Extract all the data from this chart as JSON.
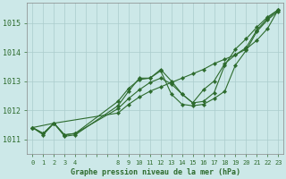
{
  "bg_color": "#cce8e8",
  "grid_color": "#aacccc",
  "line_color": "#2d6b2d",
  "marker_color": "#2d6b2d",
  "ylim": [
    1010.5,
    1015.7
  ],
  "yticks": [
    1011,
    1012,
    1013,
    1014,
    1015
  ],
  "xlabel": "Graphe pression niveau de la mer (hPa)",
  "lines": [
    {
      "x": [
        0,
        1,
        2,
        3,
        4,
        8,
        9,
        10,
        11,
        12,
        13,
        14,
        15,
        16,
        17,
        18,
        19,
        20,
        21,
        22,
        23
      ],
      "y": [
        1011.4,
        1011.2,
        1011.55,
        1011.15,
        1011.2,
        1012.05,
        1012.4,
        1012.7,
        1012.95,
        1013.1,
        1012.9,
        1012.55,
        1012.25,
        1012.7,
        1013.0,
        1013.6,
        1013.9,
        1014.15,
        1014.75,
        1015.15,
        1015.45
      ]
    },
    {
      "x": [
        0,
        1,
        2,
        3,
        4,
        8,
        9,
        10,
        11,
        12,
        13,
        14,
        15,
        16,
        17,
        18,
        19,
        20,
        21,
        22,
        23
      ],
      "y": [
        1011.4,
        1011.2,
        1011.55,
        1011.15,
        1011.2,
        1012.3,
        1012.75,
        1013.05,
        1013.1,
        1013.4,
        1013.0,
        1012.55,
        1012.25,
        1012.3,
        1012.6,
        1013.55,
        1014.1,
        1014.45,
        1014.85,
        1015.2,
        1015.45
      ]
    },
    {
      "x": [
        0,
        1,
        2,
        3,
        4,
        8,
        9,
        10,
        11,
        12,
        13,
        14,
        15,
        16,
        17,
        18,
        19,
        20,
        21,
        22,
        23
      ],
      "y": [
        1011.4,
        1011.15,
        1011.55,
        1011.1,
        1011.15,
        1012.15,
        1012.65,
        1013.1,
        1013.1,
        1013.35,
        1012.55,
        1012.2,
        1012.15,
        1012.2,
        1012.4,
        1012.65,
        1013.55,
        1014.05,
        1014.7,
        1015.1,
        1015.4
      ]
    },
    {
      "x": [
        0,
        2,
        8,
        9,
        10,
        11,
        12,
        13,
        14,
        15,
        16,
        17,
        18,
        19,
        20,
        21,
        22,
        23
      ],
      "y": [
        1011.4,
        1011.55,
        1011.9,
        1012.2,
        1012.45,
        1012.65,
        1012.8,
        1012.95,
        1013.1,
        1013.25,
        1013.4,
        1013.6,
        1013.75,
        1013.9,
        1014.1,
        1014.4,
        1014.8,
        1015.45
      ]
    }
  ]
}
